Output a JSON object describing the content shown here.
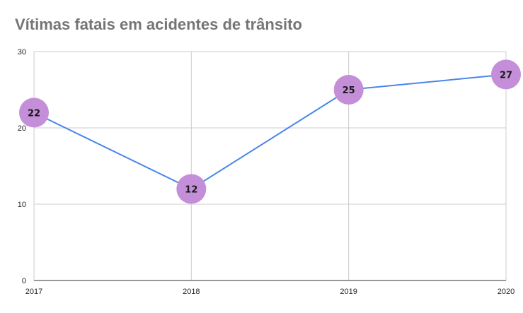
{
  "chart_data": {
    "type": "line",
    "title": "Vítimas fatais em acidentes de trânsito",
    "x": [
      "2017",
      "2018",
      "2019",
      "2020"
    ],
    "series": [
      {
        "values": [
          22,
          12,
          25,
          27
        ]
      }
    ],
    "data_labels": [
      "22",
      "12",
      "25",
      "27"
    ],
    "ylim": [
      0,
      30
    ],
    "yticks": [
      0,
      10,
      20,
      30
    ],
    "ytick_labels": [
      "0",
      "10",
      "20",
      "30"
    ],
    "xlabel": "",
    "ylabel": "",
    "grid": true,
    "legend": "none",
    "colors": {
      "line": "#4a86e8",
      "marker": "#c48fd8",
      "title": "#757575",
      "grid": "#cccccc"
    }
  }
}
